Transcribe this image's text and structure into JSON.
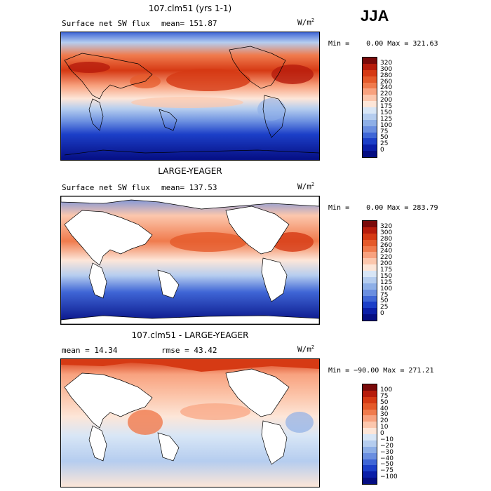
{
  "season": "JJA",
  "panels": [
    {
      "title": "107.clm51 (yrs 1-1)",
      "variable": "Surface net SW flux",
      "mean_text": "mean= 151.87",
      "units_base": "W/m",
      "units_exp": "2",
      "min_max": "Min =    0.00 Max = 321.63",
      "colorbar": {
        "labels": [
          "320",
          "300",
          "280",
          "260",
          "240",
          "220",
          "200",
          "175",
          "150",
          "125",
          "100",
          "75",
          "50",
          "25",
          "0"
        ],
        "colors": [
          "#7a0a0a",
          "#b71c0c",
          "#d63a14",
          "#e55a2a",
          "#f07b4d",
          "#f8a27f",
          "#fcc7ad",
          "#fde6d8",
          "#d8e6f6",
          "#b5cdef",
          "#8eafe7",
          "#6a8ee0",
          "#3f66d6",
          "#1c3fc8",
          "#0b1fa8",
          "#050e83"
        ]
      },
      "land_masked": false
    },
    {
      "title": "LARGE-YEAGER",
      "variable": "Surface net SW flux",
      "mean_text": "mean= 137.53",
      "units_base": "W/m",
      "units_exp": "2",
      "min_max": "Min =    0.00 Max = 283.79",
      "colorbar": {
        "labels": [
          "320",
          "300",
          "280",
          "260",
          "240",
          "220",
          "200",
          "175",
          "150",
          "125",
          "100",
          "75",
          "50",
          "25",
          "0"
        ],
        "colors": [
          "#7a0a0a",
          "#b71c0c",
          "#d63a14",
          "#e55a2a",
          "#f07b4d",
          "#f8a27f",
          "#fcc7ad",
          "#fde6d8",
          "#d8e6f6",
          "#b5cdef",
          "#8eafe7",
          "#6a8ee0",
          "#3f66d6",
          "#1c3fc8",
          "#0b1fa8",
          "#050e83"
        ]
      },
      "land_masked": true
    },
    {
      "title": "107.clm51 - LARGE-YEAGER",
      "mean_text": "mean =   14.34",
      "rmse_text": "rmse =   43.42",
      "units_base": "W/m",
      "units_exp": "2",
      "min_max": "Min = −90.00 Max = 271.21",
      "colorbar": {
        "labels": [
          "100",
          "75",
          "50",
          "40",
          "30",
          "20",
          "10",
          "0",
          "−10",
          "−20",
          "−30",
          "−40",
          "−50",
          "−75",
          "−100"
        ],
        "colors": [
          "#7a0a0a",
          "#b71c0c",
          "#d63a14",
          "#e55a2a",
          "#f07b4d",
          "#f8a27f",
          "#fcc7ad",
          "#fde6d8",
          "#d8e6f6",
          "#b5cdef",
          "#8eafe7",
          "#6a8ee0",
          "#3f66d6",
          "#1c3fc8",
          "#0b1fa8",
          "#050e83"
        ]
      },
      "land_masked": true
    }
  ]
}
